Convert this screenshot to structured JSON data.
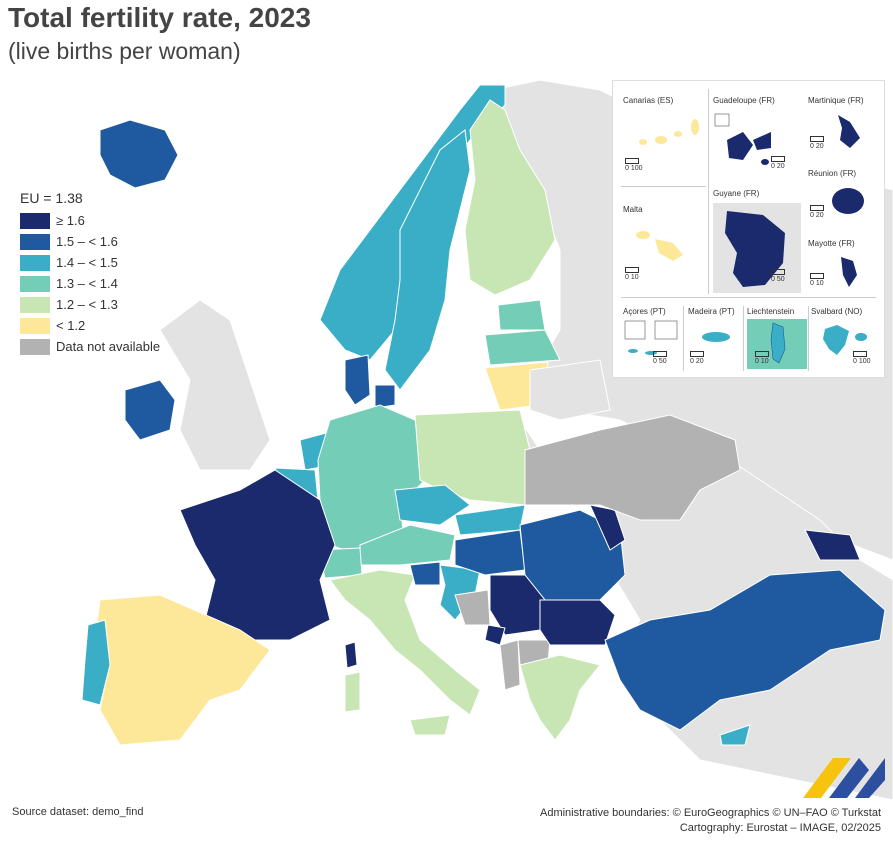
{
  "title": "Total fertility rate, 2023",
  "subtitle": "(live births per woman)",
  "legend": {
    "header": "EU = 1.38",
    "classes": [
      {
        "label": "≥ 1.6",
        "color": "#1a2a6c"
      },
      {
        "label": "1.5 – < 1.6",
        "color": "#1f5aa0"
      },
      {
        "label": "1.4 – < 1.5",
        "color": "#3aaec6"
      },
      {
        "label": "1.3 – < 1.4",
        "color": "#74cdb7"
      },
      {
        "label": "1.2 – < 1.3",
        "color": "#c8e6b4"
      },
      {
        "label": "< 1.2",
        "color": "#fde89a"
      },
      {
        "label": "Data not available",
        "color": "#b2b2b2"
      }
    ]
  },
  "insets": {
    "canarias": {
      "label": "Canarias (ES)",
      "scale": "0   100"
    },
    "guadeloupe": {
      "label": "Guadeloupe (FR)",
      "scale": "0  20"
    },
    "martinique": {
      "label": "Martinique (FR)",
      "scale": "0  20"
    },
    "reunion": {
      "label": "Réunion (FR)",
      "scale": "0  20"
    },
    "malta": {
      "label": "Malta",
      "scale": "0  10"
    },
    "guyane": {
      "label": "Guyane (FR)",
      "scale": "0  50"
    },
    "mayotte": {
      "label": "Mayotte (FR)",
      "scale": "0  10"
    },
    "acores": {
      "label": "Açores (PT)",
      "scale": "0  50"
    },
    "madeira": {
      "label": "Madeira (PT)",
      "scale": "0  20"
    },
    "liechtenstein": {
      "label": "Liechtenstein",
      "scale": "0  10"
    },
    "svalbard": {
      "label": "Svalbard (NO)",
      "scale": "0 100"
    }
  },
  "footer": {
    "source": "Source dataset: demo_find",
    "boundaries": "Administrative boundaries: © EuroGeographics © UN–FAO © Turkstat",
    "cartography": "Cartography: Eurostat – IMAGE, 02/2025"
  },
  "colors": {
    "sea": "#ffffff",
    "non_eu_land": "#e3e3e3",
    "border": "#ffffff"
  }
}
